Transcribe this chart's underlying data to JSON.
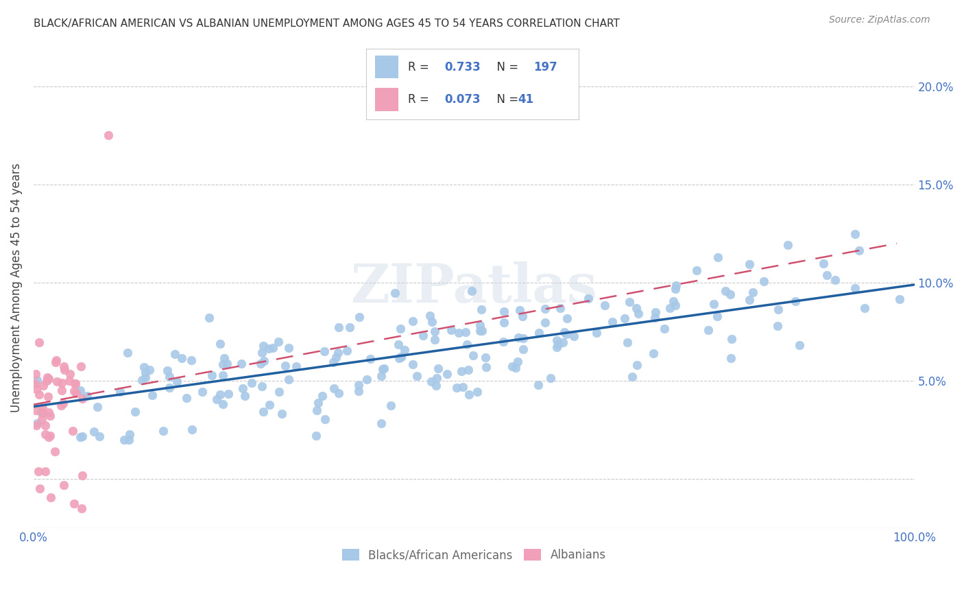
{
  "title": "BLACK/AFRICAN AMERICAN VS ALBANIAN UNEMPLOYMENT AMONG AGES 45 TO 54 YEARS CORRELATION CHART",
  "source": "Source: ZipAtlas.com",
  "ylabel": "Unemployment Among Ages 45 to 54 years",
  "xlim": [
    0,
    1.0
  ],
  "ylim": [
    0.0,
    0.215
  ],
  "blue_color": "#a8c8e8",
  "blue_line_color": "#2060a0",
  "pink_color": "#f0a0b8",
  "pink_line_color": "#d05070",
  "R_blue": 0.733,
  "N_blue": 197,
  "R_pink": 0.073,
  "N_pink": 41,
  "legend_label_blue": "Blacks/African Americans",
  "legend_label_pink": "Albanians",
  "watermark": "ZIPatlas",
  "background_color": "#ffffff",
  "grid_color": "#bbbbbb",
  "tick_label_color": "#4472c4",
  "legend_text_color": "#4472c4",
  "blue_seed": 42,
  "pink_seed": 7,
  "yticks": [
    0.0,
    0.05,
    0.1,
    0.15,
    0.2
  ],
  "ytick_labels_right": [
    "",
    "5.0%",
    "10.0%",
    "15.0%",
    "20.0%"
  ],
  "xtick_labels": [
    "0.0%",
    "",
    "",
    "",
    "",
    "100.0%"
  ]
}
